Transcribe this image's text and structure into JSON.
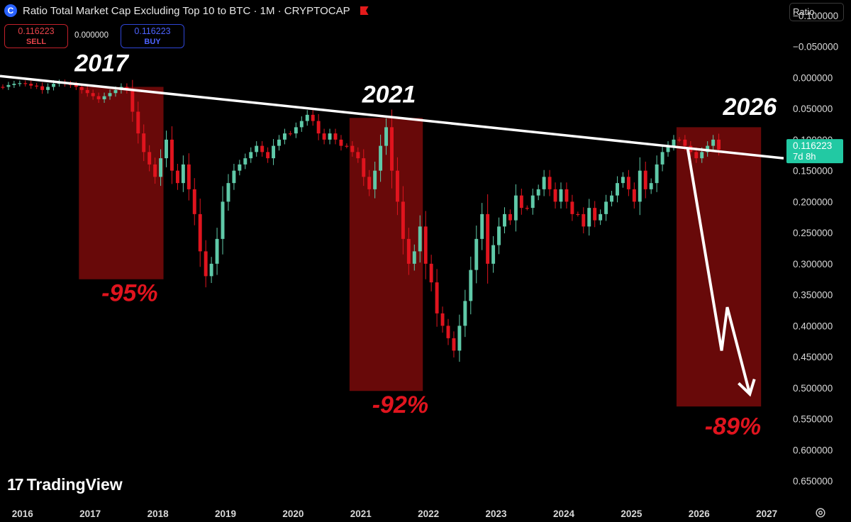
{
  "header": {
    "title": "Ratio Total Market Cap Excluding Top 10 to BTC · 1M · CRYPTOCAP",
    "sell_price": "0.116223",
    "sell_label": "SELL",
    "spread": "0.000000",
    "buy_price": "0.116223",
    "buy_label": "BUY",
    "scale_label": "Ratio"
  },
  "branding": {
    "name": "TradingView"
  },
  "icons": {
    "logo": "cryptocap-logo-icon",
    "flag": "flag-icon",
    "settings": "gear-icon"
  },
  "colors": {
    "up": "#5fc9a8",
    "down": "#e0141e",
    "box": "#7a0a0a",
    "current": "#22c9a3"
  },
  "chart_data": {
    "type": "candlestick",
    "title": "Ratio Total Market Cap Excluding Top 10 to BTC · 1M · CRYPTOCAP",
    "y_axis_inverted": true,
    "ylim": [
      -0.125,
      0.675
    ],
    "y_ticks": [
      "−0.100000",
      "−0.050000",
      "0.000000",
      "0.050000",
      "0.100000",
      "0.150000",
      "0.200000",
      "0.250000",
      "0.300000",
      "0.350000",
      "0.400000",
      "0.450000",
      "0.500000",
      "0.550000",
      "0.600000",
      "0.650000"
    ],
    "x_ticks": [
      "2016",
      "2017",
      "2018",
      "2019",
      "2020",
      "2021",
      "2022",
      "2023",
      "2024",
      "2025",
      "2026",
      "2027"
    ],
    "x_range": [
      "2015-09",
      "2027-04"
    ],
    "current_value": "0.116223",
    "current_countdown": "7d 8h",
    "annotations": [
      {
        "text": "2017",
        "x": "2017-03",
        "y": -0.01
      },
      {
        "text": "2021",
        "x": "2021-06",
        "y": 0.04
      },
      {
        "text": "2026",
        "x": "2026-10",
        "y": 0.06
      },
      {
        "text": "-95%",
        "x": "2017-08",
        "y": 0.36
      },
      {
        "text": "-92%",
        "x": "2021-08",
        "y": 0.54
      },
      {
        "text": "-89%",
        "x": "2026-07",
        "y": 0.575
      }
    ],
    "drawdown_boxes": [
      {
        "from": "2016-11",
        "to": "2018-02",
        "top": 0.015,
        "bottom": 0.325
      },
      {
        "from": "2020-11",
        "to": "2021-12",
        "top": 0.065,
        "bottom": 0.505
      },
      {
        "from": "2025-09",
        "to": "2026-12",
        "top": 0.08,
        "bottom": 0.53
      }
    ],
    "trendline": {
      "from": {
        "x": "2015-09",
        "y": -0.0025
      },
      "to": {
        "x": "2027-04",
        "y": 0.13
      }
    },
    "projection_arrow": [
      [
        "2025-11",
        0.115
      ],
      [
        "2026-05",
        0.44
      ],
      [
        "2026-06",
        0.37
      ],
      [
        "2026-10",
        0.51
      ]
    ],
    "closes": [
      0.015,
      0.012,
      0.01,
      0.009,
      0.01,
      0.013,
      0.014,
      0.02,
      0.015,
      0.01,
      0.008,
      0.01,
      0.012,
      0.015,
      0.02,
      0.025,
      0.03,
      0.035,
      0.03,
      0.025,
      0.02,
      0.015,
      0.02,
      0.055,
      0.09,
      0.12,
      0.14,
      0.16,
      0.13,
      0.1,
      0.15,
      0.17,
      0.14,
      0.18,
      0.22,
      0.28,
      0.32,
      0.3,
      0.26,
      0.2,
      0.17,
      0.15,
      0.14,
      0.13,
      0.12,
      0.11,
      0.12,
      0.13,
      0.11,
      0.1,
      0.09,
      0.09,
      0.08,
      0.07,
      0.06,
      0.07,
      0.09,
      0.1,
      0.09,
      0.1,
      0.11,
      0.11,
      0.12,
      0.13,
      0.16,
      0.18,
      0.15,
      0.11,
      0.08,
      0.15,
      0.2,
      0.26,
      0.3,
      0.28,
      0.24,
      0.3,
      0.33,
      0.38,
      0.4,
      0.42,
      0.44,
      0.4,
      0.36,
      0.31,
      0.26,
      0.22,
      0.3,
      0.27,
      0.24,
      0.22,
      0.23,
      0.19,
      0.21,
      0.21,
      0.19,
      0.18,
      0.16,
      0.18,
      0.2,
      0.18,
      0.2,
      0.22,
      0.22,
      0.24,
      0.21,
      0.23,
      0.22,
      0.2,
      0.19,
      0.17,
      0.16,
      0.18,
      0.2,
      0.15,
      0.18,
      0.17,
      0.14,
      0.12,
      0.11,
      0.1,
      0.1,
      0.11,
      0.12,
      0.13,
      0.12,
      0.11,
      0.1,
      0.116
    ]
  }
}
